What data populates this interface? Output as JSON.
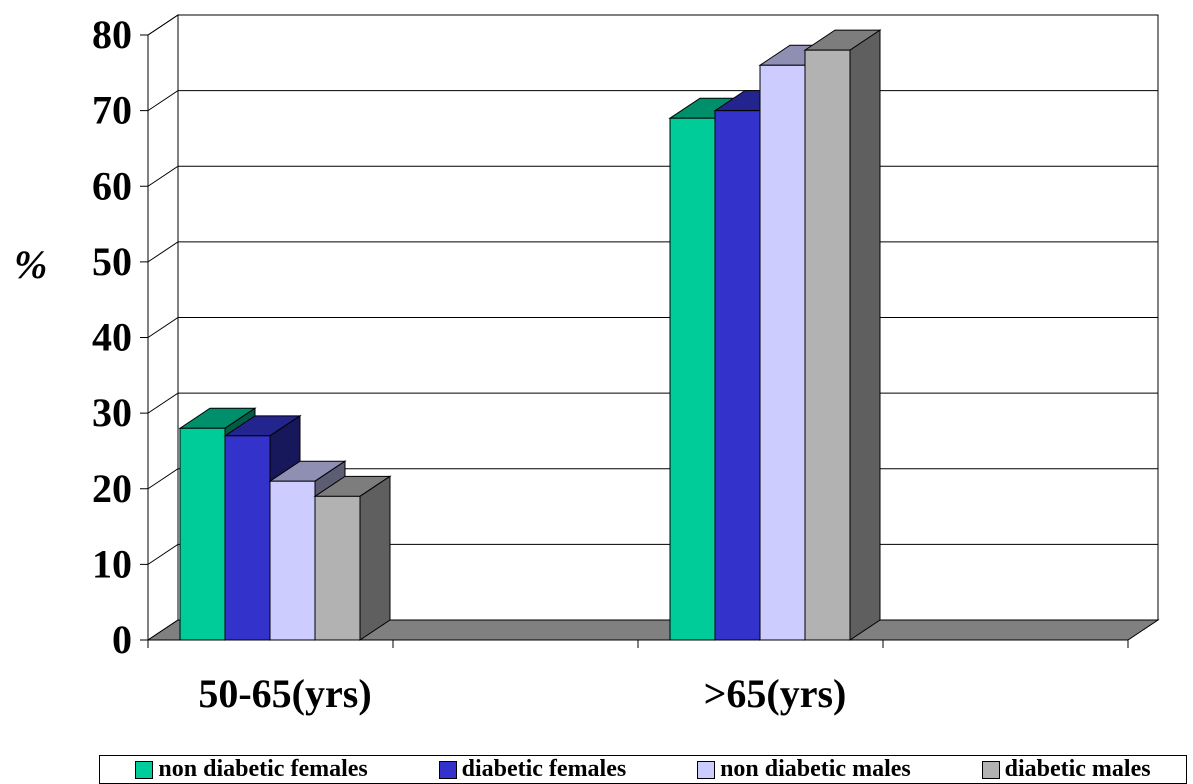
{
  "chart_data": {
    "type": "bar",
    "title": "",
    "xlabel": "",
    "ylabel": "%",
    "ylim": [
      0,
      80
    ],
    "yticks": [
      "0",
      "10",
      "20",
      "30",
      "40",
      "50",
      "60",
      "70",
      "80"
    ],
    "categories": [
      "50-65(yrs)",
      ">65(yrs)"
    ],
    "series": [
      {
        "name": "non diabetic females",
        "values": [
          28,
          69
        ],
        "color": "#00CC99"
      },
      {
        "name": "diabetic females",
        "values": [
          27,
          70
        ],
        "color": "#3333CC"
      },
      {
        "name": "non diabetic males",
        "values": [
          21,
          76
        ],
        "color": "#CCCCFF"
      },
      {
        "name": "diabetic males",
        "values": [
          19,
          78
        ],
        "color": "#B2B2B2"
      }
    ],
    "grid": true,
    "style": "3d-clustered-column",
    "legend_position": "bottom"
  }
}
